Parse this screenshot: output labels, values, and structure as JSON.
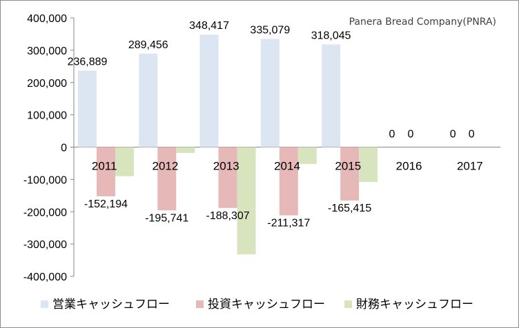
{
  "chart_data": {
    "type": "bar",
    "annotation": "Panera Bread Company(PNRA)",
    "categories": [
      "2011",
      "2012",
      "2013",
      "2014",
      "2015",
      "2016",
      "2017"
    ],
    "series": [
      {
        "name": "営業キャッシュフロー",
        "color": "#dce6f2",
        "values": [
          236889,
          289456,
          348417,
          335079,
          318045,
          0,
          0
        ],
        "labels": [
          "236,889",
          "289,456",
          "348,417",
          "335,079",
          "318,045",
          "0",
          "0"
        ]
      },
      {
        "name": "投資キャッシュフロー",
        "color": "#e6b9b8",
        "values": [
          -152194,
          -195741,
          -188307,
          -211317,
          -165415,
          0,
          0
        ],
        "labels": [
          "-152,194",
          "-195,741",
          "-188,307",
          "-211,317",
          "-165,415",
          "0",
          "0"
        ]
      },
      {
        "name": "財務キャッシュフロー",
        "color": "#d7e4bd",
        "values": [
          -90000,
          -18000,
          -332000,
          -52000,
          -108000,
          0,
          0
        ],
        "labels": []
      }
    ],
    "ylim": [
      -400000,
      400000
    ],
    "yticks": [
      400000,
      300000,
      200000,
      100000,
      0,
      -100000,
      -200000,
      -300000,
      -400000
    ],
    "ytick_labels": [
      "400,000",
      "300,000",
      "200,000",
      "100,000",
      "0",
      "-100,000",
      "-200,000",
      "-300,000",
      "-400,000"
    ],
    "grid": false,
    "legend": "bottom"
  }
}
